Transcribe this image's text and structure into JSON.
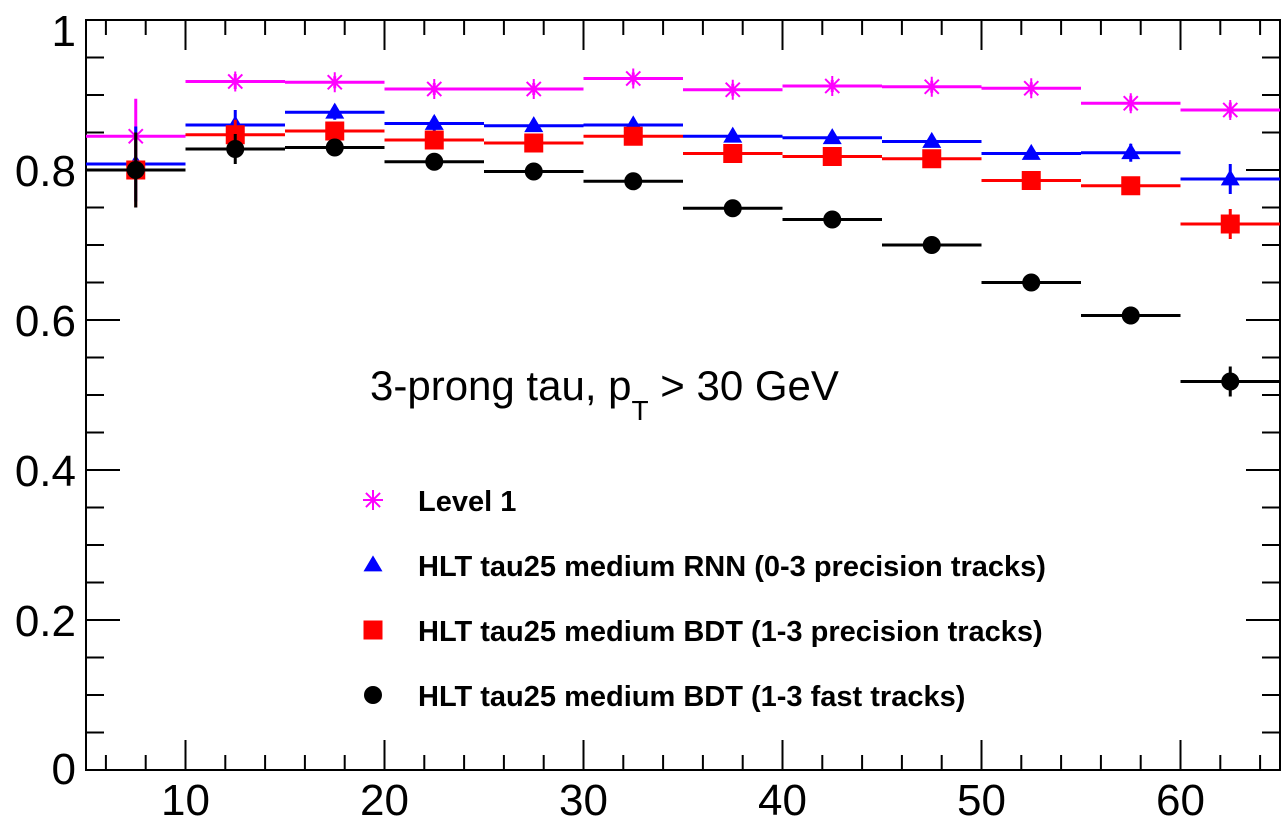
{
  "chart_data": {
    "type": "scatter",
    "title": "",
    "xlabel": "",
    "ylabel": "",
    "xlim": [
      5,
      65
    ],
    "ylim": [
      0,
      1
    ],
    "x_ticks": [
      "10",
      "20",
      "30",
      "40",
      "50",
      "60"
    ],
    "y_ticks": [
      "0",
      "0.2",
      "0.4",
      "0.6",
      "0.8",
      "1"
    ],
    "grid": false,
    "legend_position": "bottom-center",
    "annotation": {
      "main": "3-prong tau, p",
      "sub": "T",
      "rest": " > 30 GeV"
    },
    "bins": [
      [
        5,
        10
      ],
      [
        10,
        15
      ],
      [
        15,
        20
      ],
      [
        20,
        25
      ],
      [
        25,
        30
      ],
      [
        30,
        35
      ],
      [
        35,
        40
      ],
      [
        40,
        45
      ],
      [
        45,
        50
      ],
      [
        50,
        55
      ],
      [
        55,
        60
      ],
      [
        60,
        65
      ]
    ],
    "series": [
      {
        "name": "Level 1",
        "marker": "star",
        "color": "#ff00ff",
        "values": [
          0.845,
          0.918,
          0.917,
          0.908,
          0.908,
          0.922,
          0.907,
          0.912,
          0.911,
          0.909,
          0.889,
          0.88
        ],
        "errors": [
          0.05,
          0.01,
          0.008,
          0.008,
          0.008,
          0.008,
          0.008,
          0.008,
          0.008,
          0.008,
          0.01,
          0.01
        ]
      },
      {
        "name": "HLT tau25 medium RNN (0-3 precision tracks)",
        "marker": "triangle",
        "color": "#0000ff",
        "values": [
          0.808,
          0.86,
          0.877,
          0.862,
          0.859,
          0.86,
          0.845,
          0.843,
          0.838,
          0.822,
          0.823,
          0.788
        ],
        "errors": [
          0.05,
          0.02,
          0.01,
          0.01,
          0.008,
          0.008,
          0.008,
          0.008,
          0.008,
          0.008,
          0.012,
          0.02
        ]
      },
      {
        "name": "HLT tau25 medium BDT (1-3 precision tracks)",
        "marker": "square",
        "color": "#ff0000",
        "values": [
          0.8,
          0.847,
          0.852,
          0.84,
          0.836,
          0.845,
          0.822,
          0.818,
          0.815,
          0.786,
          0.779,
          0.728
        ],
        "errors": [
          0.05,
          0.02,
          0.01,
          0.01,
          0.008,
          0.008,
          0.008,
          0.008,
          0.008,
          0.008,
          0.012,
          0.02
        ]
      },
      {
        "name": "HLT tau25 medium BDT (1-3 fast tracks)",
        "marker": "circle",
        "color": "#000000",
        "values": [
          0.8,
          0.828,
          0.83,
          0.811,
          0.798,
          0.785,
          0.749,
          0.734,
          0.7,
          0.65,
          0.606,
          0.518
        ],
        "errors": [
          0.05,
          0.02,
          0.008,
          0.008,
          0.008,
          0.008,
          0.008,
          0.008,
          0.008,
          0.008,
          0.012,
          0.02
        ]
      }
    ]
  }
}
